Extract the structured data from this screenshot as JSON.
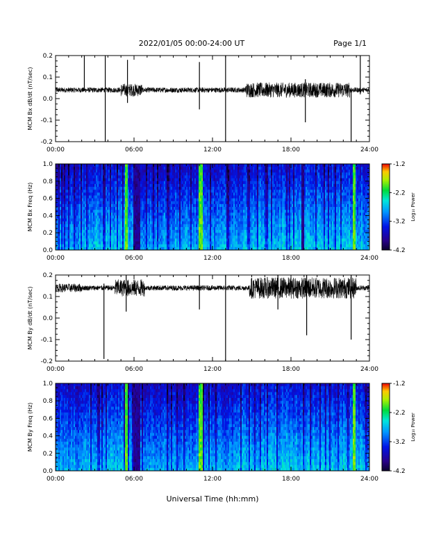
{
  "header": {
    "title": "2022/01/05  00:00-24:00 UT",
    "page": "Page 1/1"
  },
  "xaxis": {
    "label": "Universal Time (hh:mm)",
    "ticks": [
      "00:00",
      "06:00",
      "12:00",
      "18:00",
      "24:00"
    ]
  },
  "colorbar": {
    "label": "Log₁₀ Power",
    "ticks": [
      "-1.2",
      "-2.2",
      "-3.2",
      "-4.2"
    ],
    "range": [
      -4.2,
      -1.2
    ]
  },
  "chart_data": [
    {
      "type": "line",
      "ylabel": "MCM Bx dB/dt (nT/sec)",
      "xlim": [
        0,
        24
      ],
      "ylim": [
        -0.2,
        0.2
      ],
      "yticks": [
        "0.2",
        "0.1",
        "0.0",
        "-0.1",
        "-0.2"
      ],
      "baseline": 0.04,
      "series": [
        {
          "x": [
            0,
            2,
            3.8,
            5.6,
            6,
            6.5,
            11,
            12,
            14,
            15,
            18,
            20,
            22,
            23,
            24
          ],
          "y": [
            0.04,
            0.04,
            0.04,
            0.04,
            0.04,
            0.04,
            0.04,
            0.04,
            0.04,
            0.04,
            0.04,
            0.04,
            0.04,
            0.04,
            0.04
          ]
        }
      ],
      "spikes": [
        {
          "x": 2.2,
          "max": 0.2,
          "min": 0.04
        },
        {
          "x": 3.8,
          "max": 0.2,
          "min": -0.2
        },
        {
          "x": 5.5,
          "max": 0.18,
          "min": -0.02
        },
        {
          "x": 11.0,
          "max": 0.17,
          "min": -0.05
        },
        {
          "x": 13.0,
          "max": 0.2,
          "min": -0.2
        },
        {
          "x": 19.1,
          "max": 0.09,
          "min": -0.11
        },
        {
          "x": 22.6,
          "max": 0.05,
          "min": -0.2
        },
        {
          "x": 23.3,
          "max": 0.2,
          "min": 0.02
        }
      ]
    },
    {
      "type": "heatmap",
      "ylabel": "MCM Bx Freq (Hz)",
      "xlim": [
        0,
        24
      ],
      "ylim": [
        0.0,
        1.0
      ],
      "yticks": [
        "1.0",
        "0.8",
        "0.6",
        "0.4",
        "0.2",
        "0.0"
      ],
      "bright_bands_hours": [
        5.4,
        11.1,
        22.8
      ],
      "dark_bands_hours": [
        6.1,
        6.3,
        18.9
      ]
    },
    {
      "type": "line",
      "ylabel": "MCM By dB/dt (nT/sec)",
      "xlim": [
        0,
        24
      ],
      "ylim": [
        -0.2,
        0.2
      ],
      "yticks": [
        "0.2",
        "0.1",
        "0.0",
        "-0.1",
        "-0.2"
      ],
      "baseline": 0.14,
      "spikes": [
        {
          "x": 3.7,
          "max": 0.16,
          "min": -0.19
        },
        {
          "x": 5.4,
          "max": 0.2,
          "min": 0.03
        },
        {
          "x": 11.0,
          "max": 0.2,
          "min": 0.04
        },
        {
          "x": 13.0,
          "max": 0.2,
          "min": -0.2
        },
        {
          "x": 17.0,
          "max": 0.2,
          "min": 0.04
        },
        {
          "x": 19.2,
          "max": 0.2,
          "min": -0.08
        },
        {
          "x": 22.6,
          "max": 0.2,
          "min": -0.1
        }
      ]
    },
    {
      "type": "heatmap",
      "ylabel": "MCM By Freq (Hz)",
      "xlim": [
        0,
        24
      ],
      "ylim": [
        0.0,
        1.0
      ],
      "yticks": [
        "1.0",
        "0.8",
        "0.6",
        "0.4",
        "0.2",
        "0.0"
      ],
      "bright_bands_hours": [
        5.4,
        11.1,
        22.8
      ],
      "dark_bands_hours": [
        6.1,
        6.3
      ]
    }
  ]
}
